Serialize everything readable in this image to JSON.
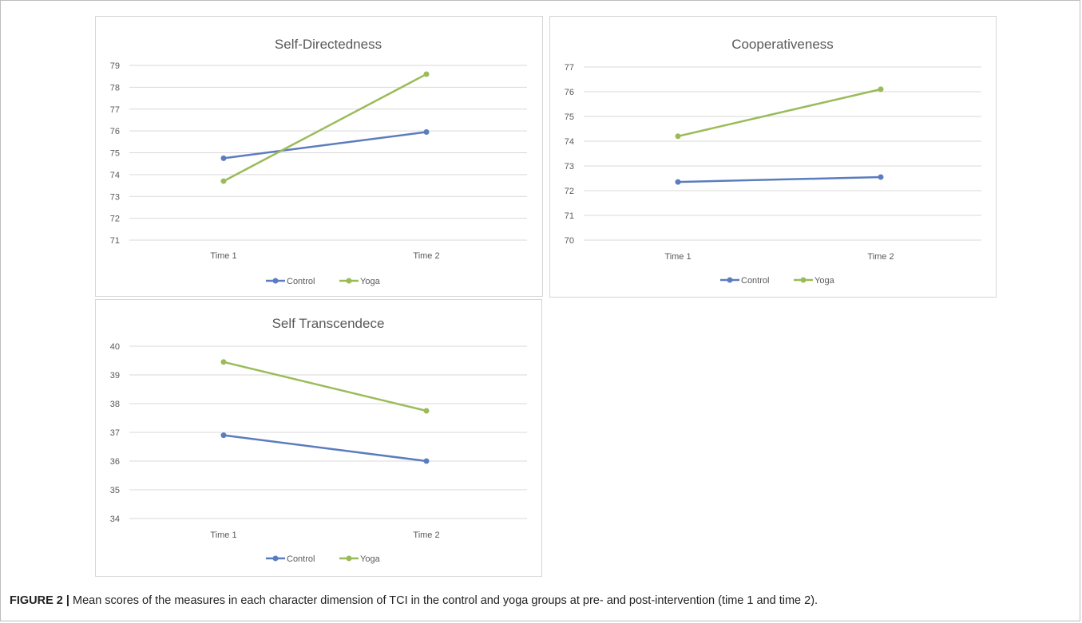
{
  "caption": {
    "label": "FIGURE 2 |",
    "text": " Mean scores of the measures in each character dimension of TCI in the control and yoga groups at pre- and post-intervention (time 1 and time 2)."
  },
  "colors": {
    "control": "#5b7dbf",
    "yoga": "#9bbb59",
    "grid": "#d9d9d9",
    "text": "#595959"
  },
  "chart_data": [
    {
      "type": "line",
      "title": "Self-Directedness",
      "categories": [
        "Time 1",
        "Time 2"
      ],
      "ylim": [
        71,
        79
      ],
      "yticks": [
        "71",
        "72",
        "73",
        "74",
        "75",
        "76",
        "77",
        "78",
        "79"
      ],
      "grid": true,
      "legend_position": "bottom",
      "series": [
        {
          "name": "Control",
          "values": [
            74.75,
            75.95
          ]
        },
        {
          "name": "Yoga",
          "values": [
            73.7,
            78.6
          ]
        }
      ]
    },
    {
      "type": "line",
      "title": "Cooperativeness",
      "categories": [
        "Time 1",
        "Time 2"
      ],
      "ylim": [
        70,
        77
      ],
      "yticks": [
        "70",
        "71",
        "72",
        "73",
        "74",
        "75",
        "76",
        "77"
      ],
      "grid": true,
      "legend_position": "bottom",
      "series": [
        {
          "name": "Control",
          "values": [
            72.35,
            72.55
          ]
        },
        {
          "name": "Yoga",
          "values": [
            74.2,
            76.1
          ]
        }
      ]
    },
    {
      "type": "line",
      "title": "Self Transcendece",
      "categories": [
        "Time 1",
        "Time 2"
      ],
      "ylim": [
        34,
        40
      ],
      "yticks": [
        "34",
        "35",
        "36",
        "37",
        "38",
        "39",
        "40"
      ],
      "grid": true,
      "legend_position": "bottom",
      "series": [
        {
          "name": "Control",
          "values": [
            36.9,
            36.0
          ]
        },
        {
          "name": "Yoga",
          "values": [
            39.45,
            37.75
          ]
        }
      ]
    }
  ]
}
